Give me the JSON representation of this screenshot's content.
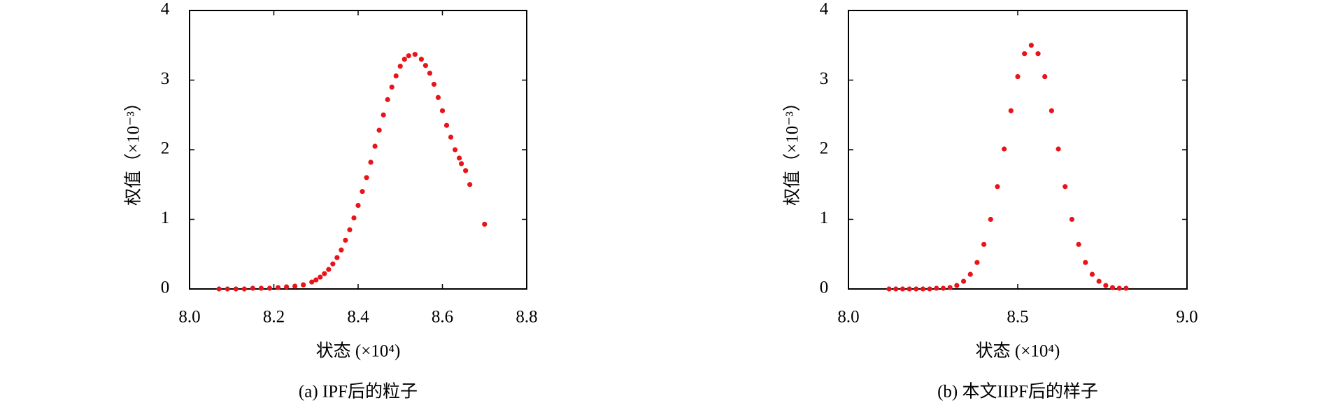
{
  "chart_data": [
    {
      "type": "scatter",
      "caption": "(a) IPF后的粒子",
      "x_label": "状态 (×10⁴)",
      "y_label": "权值（×10⁻³）",
      "color": "#e8141a",
      "xlim": [
        8.0,
        8.8
      ],
      "ylim": [
        0,
        4
      ],
      "xticks": [
        {
          "value": 8,
          "label": "8.0"
        },
        8.2,
        8.4,
        8.6,
        8.8
      ],
      "yticks": [
        0,
        1,
        2,
        3,
        4
      ],
      "x": [
        8.07,
        8.09,
        8.11,
        8.13,
        8.15,
        8.17,
        8.19,
        8.21,
        8.23,
        8.25,
        8.27,
        8.29,
        8.3,
        8.31,
        8.32,
        8.33,
        8.34,
        8.35,
        8.36,
        8.37,
        8.38,
        8.39,
        8.4,
        8.41,
        8.42,
        8.43,
        8.44,
        8.45,
        8.46,
        8.47,
        8.48,
        8.49,
        8.5,
        8.51,
        8.52,
        8.535,
        8.55,
        8.56,
        8.57,
        8.58,
        8.59,
        8.6,
        8.61,
        8.62,
        8.63,
        8.64,
        8.645,
        8.655,
        8.665,
        8.7
      ],
      "y": [
        0,
        0,
        0,
        0,
        0.01,
        0.01,
        0.01,
        0.02,
        0.03,
        0.04,
        0.06,
        0.1,
        0.13,
        0.17,
        0.22,
        0.28,
        0.36,
        0.45,
        0.56,
        0.7,
        0.85,
        1.02,
        1.2,
        1.4,
        1.6,
        1.82,
        2.05,
        2.28,
        2.5,
        2.72,
        2.9,
        3.06,
        3.2,
        3.3,
        3.35,
        3.37,
        3.3,
        3.21,
        3.1,
        2.94,
        2.75,
        2.56,
        2.35,
        2.18,
        2.0,
        1.88,
        1.8,
        1.7,
        1.5,
        0.93
      ]
    },
    {
      "type": "scatter",
      "caption": "(b) 本文IIPF后的样子",
      "x_label": "状态 (×10⁴)",
      "y_label": "权值（×10⁻³）",
      "color": "#e8141a",
      "xlim": [
        8.0,
        9.0
      ],
      "ylim": [
        0,
        4
      ],
      "xticks": [
        {
          "value": 8,
          "label": "8.0"
        },
        8.5,
        {
          "value": 9,
          "label": "9.0"
        }
      ],
      "yticks": [
        0,
        1,
        2,
        3,
        4
      ],
      "x": [
        8.12,
        8.14,
        8.16,
        8.18,
        8.2,
        8.22,
        8.24,
        8.26,
        8.28,
        8.3,
        8.32,
        8.34,
        8.36,
        8.38,
        8.4,
        8.42,
        8.44,
        8.46,
        8.48,
        8.5,
        8.52,
        8.54,
        8.56,
        8.58,
        8.6,
        8.62,
        8.64,
        8.66,
        8.68,
        8.7,
        8.72,
        8.74,
        8.76,
        8.78,
        8.8,
        8.82
      ],
      "y": [
        0,
        0,
        0,
        0,
        0,
        0,
        0,
        0.01,
        0.01,
        0.02,
        0.05,
        0.11,
        0.21,
        0.38,
        0.64,
        1.0,
        1.47,
        2.01,
        2.56,
        3.05,
        3.38,
        3.5,
        3.38,
        3.05,
        2.56,
        2.01,
        1.47,
        1.0,
        0.64,
        0.38,
        0.21,
        0.11,
        0.05,
        0.02,
        0.01,
        0.01
      ]
    }
  ]
}
